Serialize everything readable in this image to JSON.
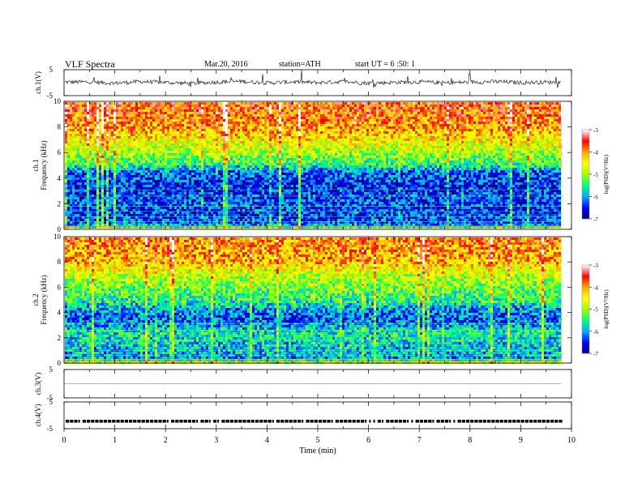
{
  "header": {
    "title": "VLF  Spectra",
    "date": "Mar.20, 2016",
    "station": "station=ATH",
    "start": "start  UT =   6  :50: 1"
  },
  "chart_data": [
    {
      "type": "line",
      "panel": "ch1-waveform",
      "ylabel": "ch.1(V)",
      "ylim": [
        -5,
        5
      ],
      "yticks": [
        5,
        -5
      ],
      "xlim": [
        0,
        10
      ],
      "baseline": 0,
      "series": [
        {
          "x": [
            0,
            0.5,
            1,
            1.5,
            2,
            2.5,
            3,
            3.5,
            4,
            4.5,
            5,
            5.5,
            6,
            6.5,
            7,
            7.5,
            8,
            8.5,
            9,
            9.5,
            9.8
          ],
          "values": [
            0.2,
            0.3,
            -0.2,
            0.4,
            0.1,
            -0.3,
            0.2,
            0.5,
            -0.1,
            0.3,
            0.0,
            0.4,
            -0.2,
            0.1,
            0.3,
            -0.1,
            0.2,
            0.4,
            0.0,
            0.2,
            0.1
          ]
        }
      ]
    },
    {
      "type": "heatmap",
      "panel": "ch1-spectrogram",
      "ylabel": "ch.1\nFrequency  (kHz)",
      "xlim": [
        0,
        10
      ],
      "ylim": [
        0,
        10
      ],
      "yticks": [
        0,
        2,
        4,
        6,
        8,
        10
      ],
      "data_end_min": 9.8,
      "value_profile": {
        "freq_khz": [
          0,
          0.5,
          1.5,
          2.2,
          3.5,
          4.5,
          5.2,
          6,
          7,
          8,
          9,
          10
        ],
        "log_psd": [
          -4.5,
          -6.2,
          -6.4,
          -6.3,
          -6.5,
          -6.2,
          -5.4,
          -5.0,
          -4.5,
          -4.0,
          -3.8,
          -3.7
        ]
      },
      "colorbar": {
        "label": "log(PSD)(V²/Hz)",
        "range": [
          -7,
          -3
        ],
        "ticks": [
          -3,
          -4,
          -5,
          -6,
          -7
        ],
        "colors": [
          "#000080",
          "#0000ff",
          "#00aaff",
          "#00ff80",
          "#a0ff00",
          "#ffff00",
          "#ffaa00",
          "#ff0000",
          "#ffffff"
        ]
      }
    },
    {
      "type": "heatmap",
      "panel": "ch2-spectrogram",
      "ylabel": "ch.2\nFrequency  (kHz)",
      "xlim": [
        0,
        10
      ],
      "ylim": [
        0,
        10
      ],
      "yticks": [
        0,
        2,
        4,
        6,
        8,
        10
      ],
      "data_end_min": 9.8,
      "value_profile": {
        "freq_khz": [
          0,
          0.5,
          1.5,
          2.5,
          3.5,
          4.3,
          5.0,
          6,
          7,
          8,
          9,
          10
        ],
        "log_psd": [
          -4.5,
          -6.0,
          -5.8,
          -5.6,
          -6.3,
          -6.0,
          -5.5,
          -5.2,
          -4.8,
          -4.2,
          -4.0,
          -3.9
        ]
      },
      "colorbar": {
        "label": "log(PSD)(V²/Hz)",
        "range": [
          -7,
          -3
        ],
        "ticks": [
          -3,
          -4,
          -5,
          -6,
          -7
        ],
        "colors": [
          "#000080",
          "#0000ff",
          "#00aaff",
          "#00ff80",
          "#a0ff00",
          "#ffff00",
          "#ffaa00",
          "#ff0000",
          "#ffffff"
        ]
      }
    },
    {
      "type": "line",
      "panel": "ch3-waveform",
      "ylabel": "ch.3(V)",
      "ylim": [
        -5,
        5
      ],
      "yticks": [
        5,
        -5
      ],
      "xlim": [
        0,
        10
      ],
      "series": [
        {
          "x": [
            0,
            9.8
          ],
          "values": [
            0,
            0
          ]
        }
      ]
    },
    {
      "type": "line",
      "panel": "ch4-waveform",
      "ylabel": "ch.4(V)",
      "ylim": [
        -5,
        5
      ],
      "yticks": [
        5,
        -5
      ],
      "xlim": [
        0,
        10
      ],
      "xlabel": "Time  (min)",
      "xticks": [
        0,
        1,
        2,
        3,
        4,
        5,
        6,
        7,
        8,
        9,
        10
      ],
      "level": -2.2,
      "series": [
        {
          "x": [
            0,
            9.8
          ],
          "values": [
            -2.2,
            -2.2
          ]
        }
      ]
    }
  ]
}
